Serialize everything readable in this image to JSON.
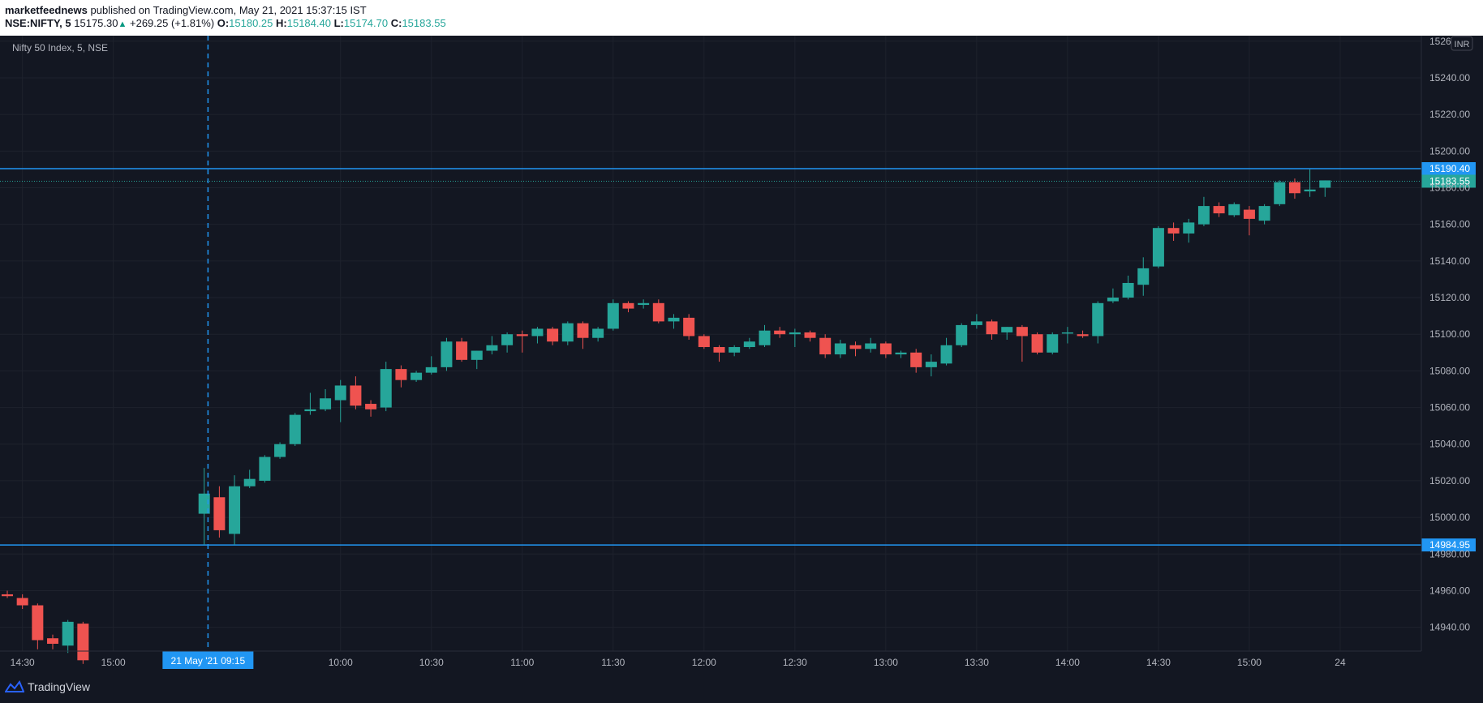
{
  "header": {
    "author": "marketfeednews",
    "published_text": "published on TradingView.com, May 21, 2021 15:37:15 IST",
    "symbol": "NSE:NIFTY, 5",
    "last": "15175.30",
    "change": "+269.25 (+1.81%)",
    "o_label": "O:",
    "o_value": "15180.25",
    "h_label": "H:",
    "h_value": "15184.40",
    "l_label": "L:",
    "l_value": "15174.70",
    "c_label": "C:",
    "c_value": "15183.55"
  },
  "legend_text": "Nifty 50 Index, 5, NSE",
  "currency": "INR",
  "footer": {
    "brand": "TradingView"
  },
  "colors": {
    "background": "#131722",
    "up": "#26a69a",
    "down": "#ef5350",
    "hline": "#2196f3",
    "price_label_up": "#26a69a",
    "grid": "#1e222d"
  },
  "chart_data": {
    "type": "candlestick",
    "title": "Nifty 50 Index, 5, NSE",
    "ylim": [
      14927,
      15263
    ],
    "y_ticks": [
      "14940.00",
      "14960.00",
      "14980.00",
      "15000.00",
      "15020.00",
      "15040.00",
      "15060.00",
      "15080.00",
      "15100.00",
      "15120.00",
      "15140.00",
      "15160.00",
      "15180.00",
      "15200.00",
      "15220.00",
      "15240.00",
      "15260.00"
    ],
    "x_ticks": [
      {
        "slot": 1,
        "label": "14:30"
      },
      {
        "slot": 7,
        "label": "15:00"
      },
      {
        "slot": 22,
        "label": "10:00"
      },
      {
        "slot": 28,
        "label": "10:30"
      },
      {
        "slot": 34,
        "label": "11:00"
      },
      {
        "slot": 40,
        "label": "11:30"
      },
      {
        "slot": 46,
        "label": "12:00"
      },
      {
        "slot": 52,
        "label": "12:30"
      },
      {
        "slot": 58,
        "label": "13:00"
      },
      {
        "slot": 64,
        "label": "13:30"
      },
      {
        "slot": 70,
        "label": "14:00"
      },
      {
        "slot": 76,
        "label": "14:30"
      },
      {
        "slot": 82,
        "label": "15:00"
      },
      {
        "slot": 88,
        "label": "24"
      }
    ],
    "crosshair": {
      "slot": 13.25,
      "label": "21 May '21   09:15"
    },
    "horizontal_lines": [
      {
        "value": 15190.4,
        "label": "15190.40"
      },
      {
        "value": 14984.95,
        "label": "14984.95"
      }
    ],
    "last_price": {
      "value": 15183.55,
      "label": "15183.55"
    },
    "candles": [
      {
        "slot": 0,
        "o": 14958,
        "h": 14960,
        "l": 14956,
        "c": 14957
      },
      {
        "slot": 1,
        "o": 14956,
        "h": 14958,
        "l": 14950,
        "c": 14952
      },
      {
        "slot": 2,
        "o": 14952,
        "h": 14953,
        "l": 14928,
        "c": 14933
      },
      {
        "slot": 3,
        "o": 14934,
        "h": 14936,
        "l": 14928,
        "c": 14931
      },
      {
        "slot": 4,
        "o": 14930,
        "h": 14944,
        "l": 14926,
        "c": 14943
      },
      {
        "slot": 5,
        "o": 14942,
        "h": 14943,
        "l": 14920,
        "c": 14922
      },
      {
        "slot": 13,
        "o": 15002,
        "h": 15027,
        "l": 14985,
        "c": 15013
      },
      {
        "slot": 14,
        "o": 15011,
        "h": 15017,
        "l": 14989,
        "c": 14993
      },
      {
        "slot": 15,
        "o": 14991,
        "h": 15023,
        "l": 14985,
        "c": 15017
      },
      {
        "slot": 16,
        "o": 15017,
        "h": 15026,
        "l": 15016,
        "c": 15021
      },
      {
        "slot": 17,
        "o": 15020,
        "h": 15034,
        "l": 15019,
        "c": 15033
      },
      {
        "slot": 18,
        "o": 15033,
        "h": 15041,
        "l": 15032,
        "c": 15040
      },
      {
        "slot": 19,
        "o": 15040,
        "h": 15057,
        "l": 15039,
        "c": 15056
      },
      {
        "slot": 20,
        "o": 15058,
        "h": 15068,
        "l": 15056,
        "c": 15059
      },
      {
        "slot": 21,
        "o": 15059,
        "h": 15070,
        "l": 15058,
        "c": 15065
      },
      {
        "slot": 22,
        "o": 15064,
        "h": 15075,
        "l": 15052,
        "c": 15072
      },
      {
        "slot": 23,
        "o": 15072,
        "h": 15077,
        "l": 15059,
        "c": 15061
      },
      {
        "slot": 24,
        "o": 15062,
        "h": 15064,
        "l": 15055,
        "c": 15059
      },
      {
        "slot": 25,
        "o": 15060,
        "h": 15085,
        "l": 15058,
        "c": 15081
      },
      {
        "slot": 26,
        "o": 15081,
        "h": 15083,
        "l": 15071,
        "c": 15075
      },
      {
        "slot": 27,
        "o": 15075,
        "h": 15080,
        "l": 15074,
        "c": 15079
      },
      {
        "slot": 28,
        "o": 15079,
        "h": 15088,
        "l": 15078,
        "c": 15082
      },
      {
        "slot": 29,
        "o": 15082,
        "h": 15098,
        "l": 15080,
        "c": 15096
      },
      {
        "slot": 30,
        "o": 15096,
        "h": 15098,
        "l": 15085,
        "c": 15086
      },
      {
        "slot": 31,
        "o": 15086,
        "h": 15091,
        "l": 15081,
        "c": 15091
      },
      {
        "slot": 32,
        "o": 15091,
        "h": 15099,
        "l": 15089,
        "c": 15094
      },
      {
        "slot": 33,
        "o": 15094,
        "h": 15101,
        "l": 15090,
        "c": 15100
      },
      {
        "slot": 34,
        "o": 15100,
        "h": 15102,
        "l": 15090,
        "c": 15099
      },
      {
        "slot": 35,
        "o": 15099,
        "h": 15104,
        "l": 15095,
        "c": 15103
      },
      {
        "slot": 36,
        "o": 15103,
        "h": 15104,
        "l": 15094,
        "c": 15096
      },
      {
        "slot": 37,
        "o": 15096,
        "h": 15107,
        "l": 15094,
        "c": 15106
      },
      {
        "slot": 38,
        "o": 15106,
        "h": 15107,
        "l": 15092,
        "c": 15098
      },
      {
        "slot": 39,
        "o": 15098,
        "h": 15104,
        "l": 15096,
        "c": 15103
      },
      {
        "slot": 40,
        "o": 15103,
        "h": 15119,
        "l": 15102,
        "c": 15117
      },
      {
        "slot": 41,
        "o": 15117,
        "h": 15118,
        "l": 15112,
        "c": 15114
      },
      {
        "slot": 42,
        "o": 15116,
        "h": 15119,
        "l": 15114,
        "c": 15117
      },
      {
        "slot": 43,
        "o": 15117,
        "h": 15119,
        "l": 15106,
        "c": 15107
      },
      {
        "slot": 44,
        "o": 15107,
        "h": 15111,
        "l": 15103,
        "c": 15109
      },
      {
        "slot": 45,
        "o": 15109,
        "h": 15111,
        "l": 15097,
        "c": 15099
      },
      {
        "slot": 46,
        "o": 15099,
        "h": 15100,
        "l": 15092,
        "c": 15093
      },
      {
        "slot": 47,
        "o": 15093,
        "h": 15094,
        "l": 15085,
        "c": 15090
      },
      {
        "slot": 48,
        "o": 15090,
        "h": 15094,
        "l": 15088,
        "c": 15093
      },
      {
        "slot": 49,
        "o": 15093,
        "h": 15098,
        "l": 15092,
        "c": 15096
      },
      {
        "slot": 50,
        "o": 15094,
        "h": 15105,
        "l": 15093,
        "c": 15102
      },
      {
        "slot": 51,
        "o": 15102,
        "h": 15104,
        "l": 15098,
        "c": 15100
      },
      {
        "slot": 52,
        "o": 15100,
        "h": 15103,
        "l": 15093,
        "c": 15101
      },
      {
        "slot": 53,
        "o": 15101,
        "h": 15102,
        "l": 15096,
        "c": 15098
      },
      {
        "slot": 54,
        "o": 15098,
        "h": 15100,
        "l": 15087,
        "c": 15089
      },
      {
        "slot": 55,
        "o": 15089,
        "h": 15097,
        "l": 15087,
        "c": 15095
      },
      {
        "slot": 56,
        "o": 15094,
        "h": 15096,
        "l": 15088,
        "c": 15092
      },
      {
        "slot": 57,
        "o": 15092,
        "h": 15098,
        "l": 15090,
        "c": 15095
      },
      {
        "slot": 58,
        "o": 15095,
        "h": 15096,
        "l": 15087,
        "c": 15089
      },
      {
        "slot": 59,
        "o": 15089,
        "h": 15091,
        "l": 15087,
        "c": 15090
      },
      {
        "slot": 60,
        "o": 15090,
        "h": 15092,
        "l": 15079,
        "c": 15082
      },
      {
        "slot": 61,
        "o": 15082,
        "h": 15089,
        "l": 15077,
        "c": 15085
      },
      {
        "slot": 62,
        "o": 15084,
        "h": 15098,
        "l": 15083,
        "c": 15094
      },
      {
        "slot": 63,
        "o": 15094,
        "h": 15106,
        "l": 15093,
        "c": 15105
      },
      {
        "slot": 64,
        "o": 15105,
        "h": 15111,
        "l": 15103,
        "c": 15107
      },
      {
        "slot": 65,
        "o": 15107,
        "h": 15108,
        "l": 15097,
        "c": 15100
      },
      {
        "slot": 66,
        "o": 15101,
        "h": 15104,
        "l": 15097,
        "c": 15104
      },
      {
        "slot": 67,
        "o": 15104,
        "h": 15105,
        "l": 15085,
        "c": 15099
      },
      {
        "slot": 68,
        "o": 15100,
        "h": 15101,
        "l": 15089,
        "c": 15090
      },
      {
        "slot": 69,
        "o": 15090,
        "h": 15101,
        "l": 15089,
        "c": 15100
      },
      {
        "slot": 70,
        "o": 15101,
        "h": 15104,
        "l": 15095,
        "c": 15101
      },
      {
        "slot": 71,
        "o": 15100,
        "h": 15102,
        "l": 15098,
        "c": 15099
      },
      {
        "slot": 72,
        "o": 15099,
        "h": 15118,
        "l": 15095,
        "c": 15117
      },
      {
        "slot": 73,
        "o": 15118,
        "h": 15125,
        "l": 15117,
        "c": 15120
      },
      {
        "slot": 74,
        "o": 15120,
        "h": 15132,
        "l": 15119,
        "c": 15128
      },
      {
        "slot": 75,
        "o": 15127,
        "h": 15142,
        "l": 15121,
        "c": 15136
      },
      {
        "slot": 76,
        "o": 15137,
        "h": 15159,
        "l": 15136,
        "c": 15158
      },
      {
        "slot": 77,
        "o": 15158,
        "h": 15161,
        "l": 15151,
        "c": 15155
      },
      {
        "slot": 78,
        "o": 15155,
        "h": 15163,
        "l": 15150,
        "c": 15161
      },
      {
        "slot": 79,
        "o": 15160,
        "h": 15175,
        "l": 15159,
        "c": 15170
      },
      {
        "slot": 80,
        "o": 15170,
        "h": 15172,
        "l": 15164,
        "c": 15166
      },
      {
        "slot": 81,
        "o": 15165,
        "h": 15172,
        "l": 15164,
        "c": 15171
      },
      {
        "slot": 82,
        "o": 15168,
        "h": 15170,
        "l": 15154,
        "c": 15163
      },
      {
        "slot": 83,
        "o": 15162,
        "h": 15171,
        "l": 15160,
        "c": 15170
      },
      {
        "slot": 84,
        "o": 15171,
        "h": 15184,
        "l": 15170,
        "c": 15183
      },
      {
        "slot": 85,
        "o": 15183,
        "h": 15185,
        "l": 15174,
        "c": 15177
      },
      {
        "slot": 86,
        "o": 15178,
        "h": 15190,
        "l": 15175,
        "c": 15179
      },
      {
        "slot": 87,
        "o": 15180,
        "h": 15184,
        "l": 15175,
        "c": 15184
      }
    ]
  }
}
